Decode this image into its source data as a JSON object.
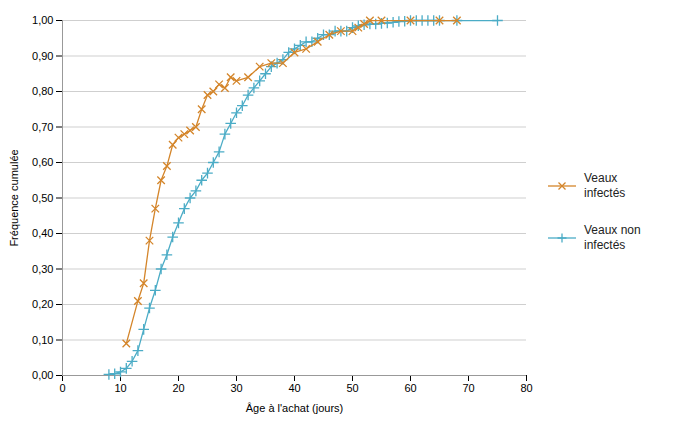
{
  "chart_data": {
    "type": "line",
    "xlabel": "Âge à l'achat (jours)",
    "ylabel": "Fréquence cumulée",
    "xlim": [
      0,
      80
    ],
    "ylim": [
      0,
      1.0
    ],
    "xticks": [
      0,
      10,
      20,
      30,
      40,
      50,
      60,
      70,
      80
    ],
    "yticks": [
      {
        "value": 0.0,
        "label": "0,00"
      },
      {
        "value": 0.1,
        "label": "0,10"
      },
      {
        "value": 0.2,
        "label": "0,20"
      },
      {
        "value": 0.3,
        "label": "0,30"
      },
      {
        "value": 0.4,
        "label": "0,40"
      },
      {
        "value": 0.5,
        "label": "0,50"
      },
      {
        "value": 0.6,
        "label": "0,60"
      },
      {
        "value": 0.7,
        "label": "0,70"
      },
      {
        "value": 0.8,
        "label": "0,80"
      },
      {
        "value": 0.9,
        "label": "0,90"
      },
      {
        "value": 1.0,
        "label": "1,00"
      }
    ],
    "grid": true,
    "legend": "right",
    "series": [
      {
        "name": "Veaux\ninfectés",
        "color": "#D4852A",
        "marker": "x",
        "x": [
          11,
          13,
          14,
          15,
          16,
          17,
          18,
          19,
          20,
          21,
          22,
          23,
          24,
          25,
          26,
          27,
          28,
          29,
          30,
          32,
          34,
          36,
          38,
          40,
          42,
          44,
          46,
          48,
          50,
          51,
          52,
          53,
          55,
          60,
          65,
          68
        ],
        "values": [
          0.09,
          0.21,
          0.26,
          0.38,
          0.47,
          0.55,
          0.59,
          0.65,
          0.67,
          0.68,
          0.69,
          0.7,
          0.75,
          0.79,
          0.8,
          0.82,
          0.81,
          0.84,
          0.83,
          0.84,
          0.87,
          0.88,
          0.88,
          0.91,
          0.92,
          0.94,
          0.96,
          0.97,
          0.97,
          0.98,
          0.99,
          1.0,
          1.0,
          1.0,
          1.0,
          1.0
        ]
      },
      {
        "name": "Veaux non\ninfectés",
        "color": "#4BACC6",
        "marker": "plus",
        "x": [
          8,
          9,
          10,
          11,
          12,
          13,
          14,
          15,
          16,
          17,
          18,
          19,
          20,
          21,
          22,
          23,
          24,
          25,
          26,
          27,
          28,
          29,
          30,
          31,
          32,
          33,
          34,
          35,
          36,
          37,
          38,
          39,
          40,
          41,
          42,
          43,
          44,
          45,
          46,
          47,
          48,
          49,
          50,
          51,
          52,
          53,
          54,
          55,
          56,
          57,
          58,
          59,
          60,
          61,
          62,
          63,
          64,
          65,
          68,
          75
        ],
        "values": [
          0.003,
          0.005,
          0.01,
          0.02,
          0.04,
          0.07,
          0.13,
          0.19,
          0.24,
          0.3,
          0.34,
          0.39,
          0.43,
          0.47,
          0.5,
          0.52,
          0.55,
          0.57,
          0.6,
          0.63,
          0.68,
          0.71,
          0.74,
          0.76,
          0.79,
          0.81,
          0.83,
          0.85,
          0.87,
          0.88,
          0.89,
          0.91,
          0.92,
          0.93,
          0.94,
          0.94,
          0.95,
          0.96,
          0.96,
          0.97,
          0.97,
          0.97,
          0.98,
          0.985,
          0.988,
          0.99,
          0.99,
          0.992,
          0.993,
          0.995,
          0.997,
          0.998,
          1.0,
          1.0,
          1.0,
          1.0,
          1.0,
          1.0,
          1.0,
          1.0
        ]
      }
    ]
  }
}
